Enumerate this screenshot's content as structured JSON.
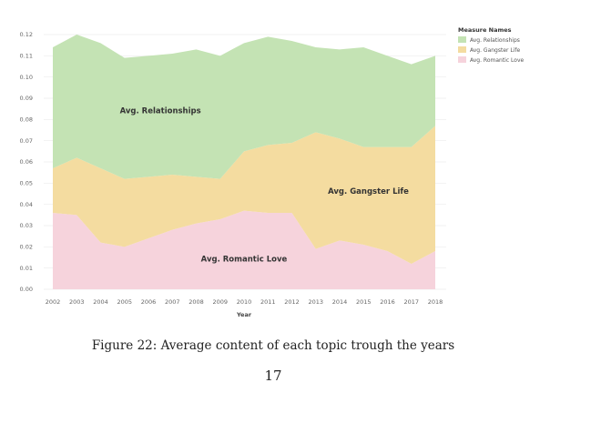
{
  "chart_data": {
    "type": "area",
    "stacked": true,
    "x": [
      2002,
      2003,
      2004,
      2005,
      2006,
      2007,
      2008,
      2009,
      2010,
      2011,
      2012,
      2013,
      2014,
      2015,
      2016,
      2017,
      2018
    ],
    "xlabel": "Year",
    "ylabel": "",
    "ylim": [
      0,
      0.12
    ],
    "yticks": [
      "0.00",
      "0.01",
      "0.02",
      "0.03",
      "0.04",
      "0.05",
      "0.06",
      "0.07",
      "0.08",
      "0.09",
      "0.10",
      "0.11",
      "0.12"
    ],
    "grid": true,
    "legend": {
      "title": "Measure Names",
      "placement": "top-right"
    },
    "series": [
      {
        "name": "Avg. Romantic Love",
        "color": "#f6d3dc",
        "values": [
          0.036,
          0.035,
          0.022,
          0.02,
          0.024,
          0.028,
          0.031,
          0.033,
          0.037,
          0.036,
          0.036,
          0.019,
          0.023,
          0.021,
          0.018,
          0.012,
          0.018
        ]
      },
      {
        "name": "Avg. Gangster Life",
        "color": "#f4dca0",
        "values": [
          0.021,
          0.027,
          0.035,
          0.032,
          0.029,
          0.026,
          0.022,
          0.019,
          0.028,
          0.032,
          0.033,
          0.055,
          0.048,
          0.046,
          0.049,
          0.055,
          0.059
        ]
      },
      {
        "name": "Avg. Relationships",
        "color": "#c4e3b4",
        "values": [
          0.057,
          0.058,
          0.059,
          0.057,
          0.057,
          0.057,
          0.06,
          0.058,
          0.051,
          0.051,
          0.048,
          0.04,
          0.042,
          0.047,
          0.043,
          0.039,
          0.033
        ]
      }
    ],
    "area_labels": [
      {
        "series": "Avg. Relationships",
        "text": "Avg. Relationships",
        "x": 2006.5,
        "y": 0.083
      },
      {
        "series": "Avg. Gangster Life",
        "text": "Avg. Gangster Life",
        "x": 2015.2,
        "y": 0.045
      },
      {
        "series": "Avg. Romantic Love",
        "text": "Avg. Romantic Love",
        "x": 2010.0,
        "y": 0.013
      }
    ]
  },
  "caption": "Figure 22: Average content of each topic trough the years",
  "page_number": "17"
}
